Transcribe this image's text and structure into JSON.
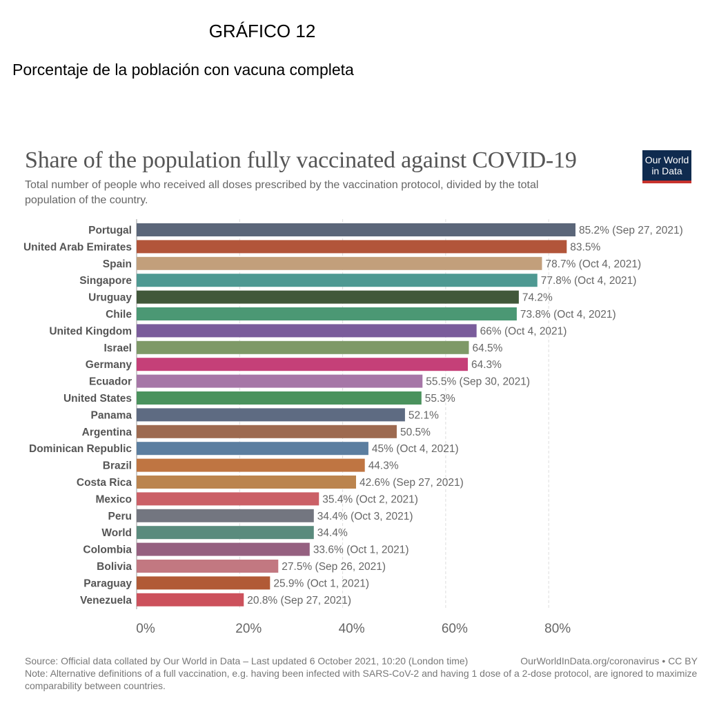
{
  "header": {
    "grafico_title": "GRÁFICO 12",
    "grafico_subtitle": "Porcentaje de la población con vacuna completa"
  },
  "owid": {
    "title": "Share of the population fully vaccinated against COVID-19",
    "description": "Total number of people who received all doses prescribed by the vaccination protocol, divided by the total population of the country.",
    "logo_line1": "Our World",
    "logo_line2": "in Data",
    "source": "Source: Official data collated by Our World in Data – Last updated 6 October 2021, 10:20 (London time)",
    "source_right": "OurWorldInData.org/coronavirus • CC BY",
    "note": "Note: Alternative definitions of a full vaccination, e.g. having been infected with SARS-CoV-2 and having 1 dose of a 2-dose protocol, are ignored to maximize comparability between countries."
  },
  "chart_data": {
    "type": "bar",
    "orientation": "horizontal",
    "xlim": [
      0,
      85.2
    ],
    "ticks": [
      0,
      20,
      40,
      60,
      80
    ],
    "tick_labels": [
      "0%",
      "20%",
      "40%",
      "60%",
      "80%"
    ],
    "grid": "vertical dashed",
    "categories": [
      "Portugal",
      "United Arab Emirates",
      "Spain",
      "Singapore",
      "Uruguay",
      "Chile",
      "United Kingdom",
      "Israel",
      "Germany",
      "Ecuador",
      "United States",
      "Panama",
      "Argentina",
      "Dominican Republic",
      "Brazil",
      "Costa Rica",
      "Mexico",
      "Peru",
      "World",
      "Colombia",
      "Bolivia",
      "Paraguay",
      "Venezuela"
    ],
    "values": [
      85.2,
      83.5,
      78.7,
      77.8,
      74.2,
      73.8,
      66,
      64.5,
      64.3,
      55.5,
      55.3,
      52.1,
      50.5,
      45,
      44.3,
      42.6,
      35.4,
      34.4,
      34.4,
      33.6,
      27.5,
      25.9,
      20.8
    ],
    "value_labels": [
      "85.2% (Sep 27, 2021)",
      "83.5%",
      "78.7% (Oct 4, 2021)",
      "77.8% (Oct 4, 2021)",
      "74.2%",
      "73.8% (Oct 4, 2021)",
      "66% (Oct 4, 2021)",
      "64.5%",
      "64.3%",
      "55.5% (Sep 30, 2021)",
      "55.3%",
      "52.1%",
      "50.5%",
      "45% (Oct 4, 2021)",
      "44.3%",
      "42.6% (Sep 27, 2021)",
      "35.4% (Oct 2, 2021)",
      "34.4% (Oct 3, 2021)",
      "34.4%",
      "33.6% (Oct 1, 2021)",
      "27.5% (Sep 26, 2021)",
      "25.9% (Oct 1, 2021)",
      "20.8% (Sep 27, 2021)"
    ],
    "colors": [
      "#5b6679",
      "#b2553a",
      "#c29f7b",
      "#4e9992",
      "#41583a",
      "#4b9874",
      "#7a5c9b",
      "#7e9967",
      "#c54078",
      "#a676a7",
      "#4a925d",
      "#5e6b82",
      "#9d6a50",
      "#5b7ea0",
      "#bf7542",
      "#bb844e",
      "#cb6067",
      "#737680",
      "#5a8b7d",
      "#956080",
      "#c27881",
      "#b15a36",
      "#cc515c"
    ]
  }
}
